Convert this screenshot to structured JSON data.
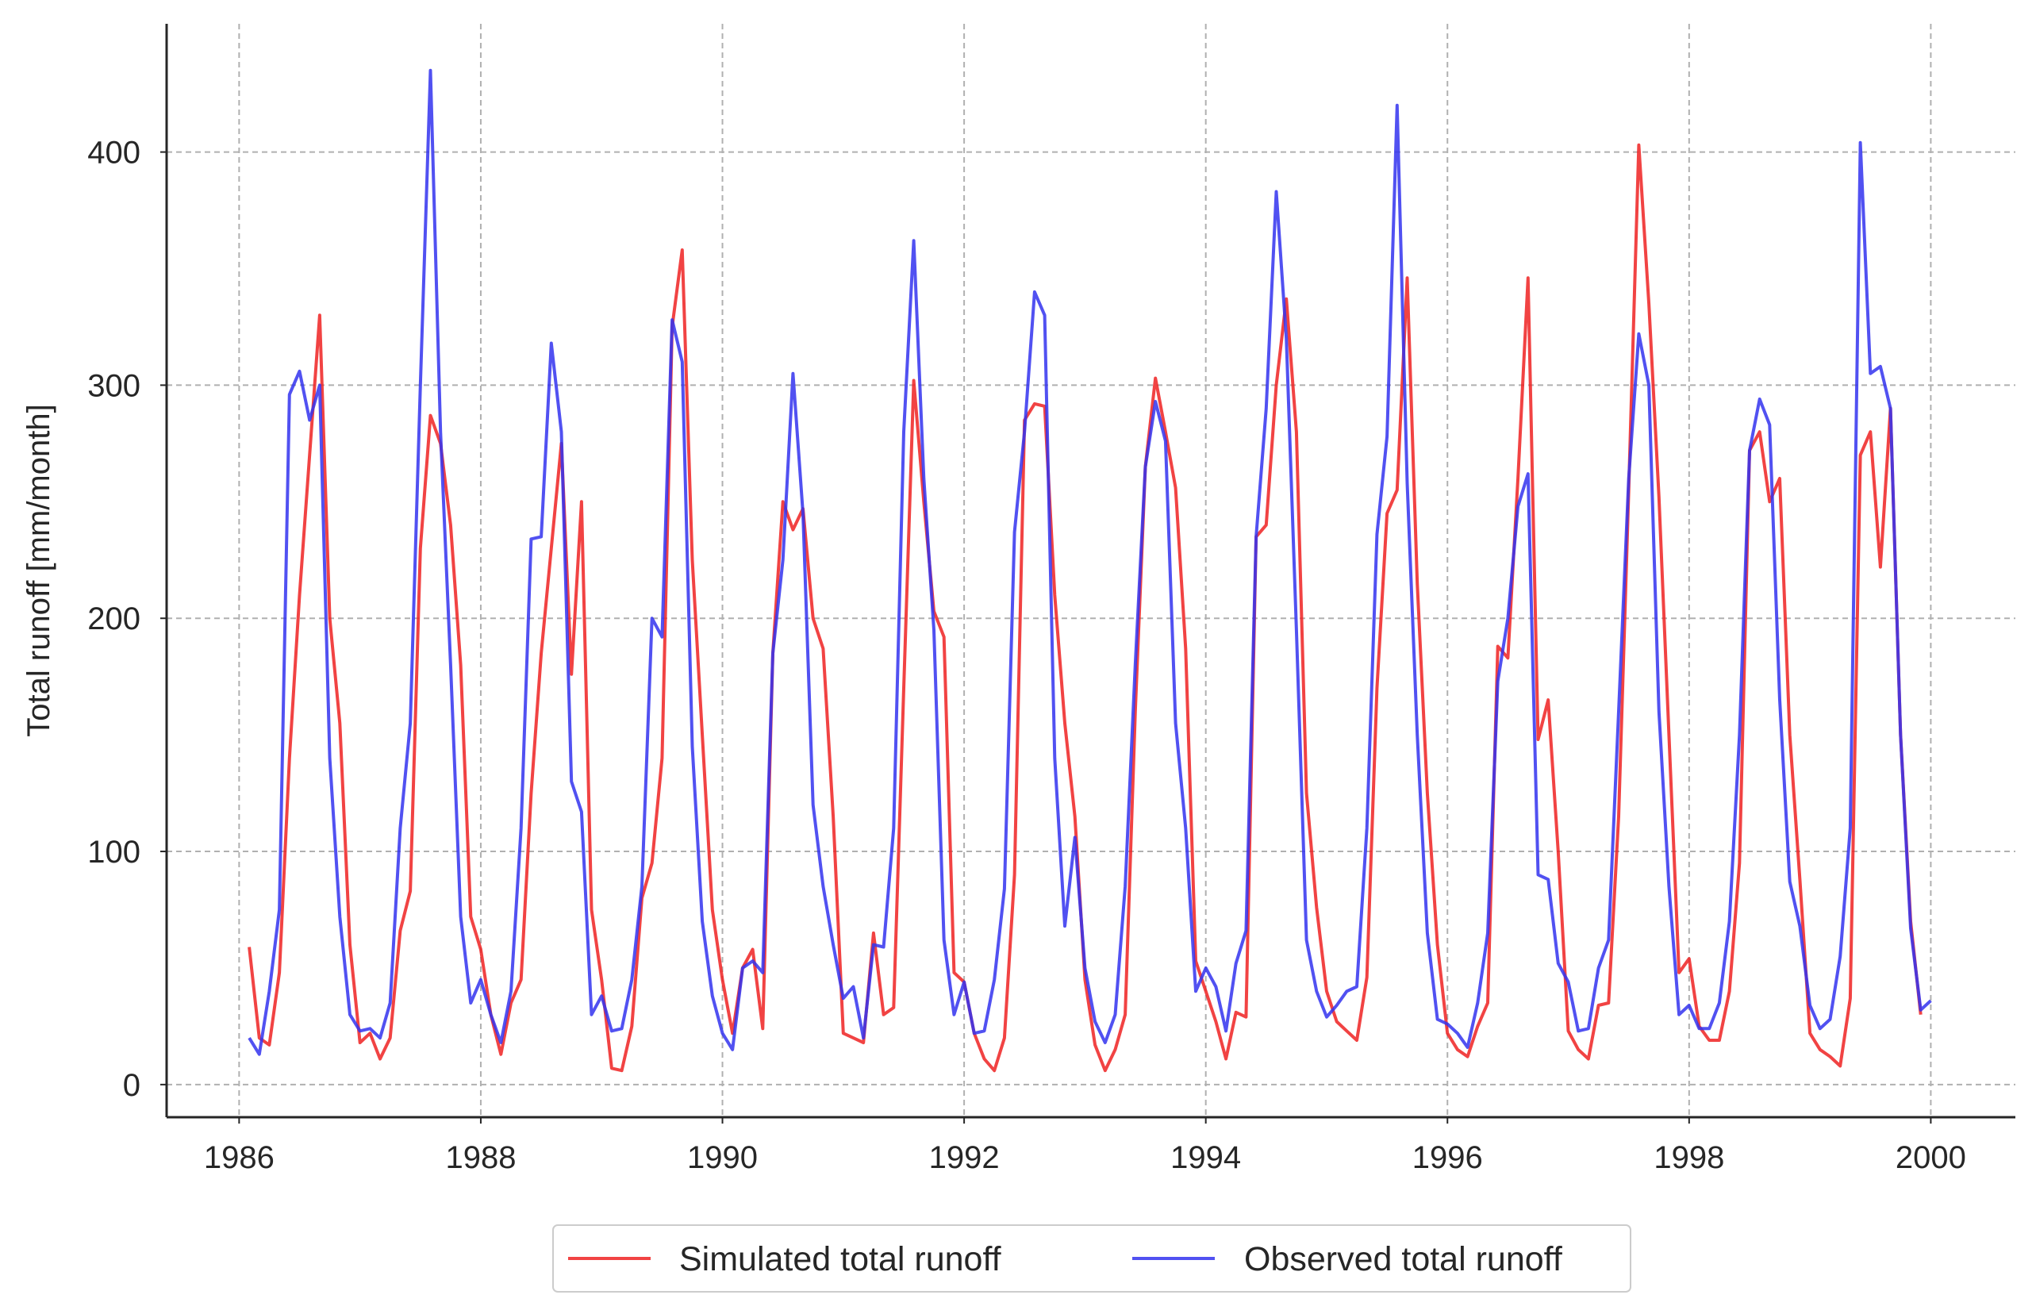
{
  "chart_data": {
    "type": "line",
    "title": "",
    "xlabel": "",
    "ylabel": "Total runoff [mm/month]",
    "xlim": [
      1985.4,
      2000.7
    ],
    "ylim": [
      -14,
      455
    ],
    "x_ticks": [
      1986,
      1988,
      1990,
      1992,
      1994,
      1996,
      1998,
      2000
    ],
    "x_tick_labels": [
      "1986",
      "1988",
      "1990",
      "1992",
      "1994",
      "1996",
      "1998",
      "2000"
    ],
    "y_ticks": [
      0,
      100,
      200,
      300,
      400
    ],
    "y_tick_labels": [
      "0",
      "100",
      "200",
      "300",
      "400"
    ],
    "grid": true,
    "legend_position": "bottom-center-outside",
    "x_start": "1986-02",
    "x_step": "monthly",
    "series": [
      {
        "name": "Simulated total runoff",
        "color": "#ee2222",
        "values": [
          59,
          20,
          17,
          48,
          140,
          210,
          270,
          330,
          200,
          155,
          60,
          18,
          22,
          11,
          20,
          66,
          83,
          230,
          287,
          275,
          240,
          180,
          72,
          58,
          30,
          13,
          35,
          45,
          125,
          185,
          230,
          275,
          176,
          250,
          75,
          45,
          7,
          6,
          25,
          80,
          95,
          140,
          325,
          358,
          225,
          150,
          75,
          45,
          22,
          50,
          58,
          24,
          185,
          250,
          238,
          247,
          200,
          187,
          115,
          22,
          20,
          18,
          65,
          30,
          33,
          170,
          302,
          250,
          203,
          192,
          48,
          44,
          22,
          11,
          6,
          20,
          90,
          285,
          292,
          291,
          210,
          155,
          115,
          45,
          17,
          6,
          15,
          30,
          160,
          265,
          303,
          280,
          256,
          187,
          53,
          40,
          27,
          11,
          31,
          29,
          235,
          240,
          300,
          337,
          280,
          125,
          76,
          40,
          27,
          23,
          19,
          46,
          170,
          245,
          255,
          346,
          215,
          125,
          60,
          22,
          15,
          12,
          25,
          35,
          188,
          183,
          260,
          346,
          148,
          165,
          100,
          23,
          15,
          11,
          34,
          35,
          115,
          255,
          403,
          335,
          252,
          150,
          48,
          54,
          25,
          19,
          19,
          40,
          95,
          272,
          280,
          250,
          260,
          150,
          88,
          22,
          15,
          12,
          8,
          37,
          270,
          280,
          222,
          290,
          150,
          70,
          30
        ]
      },
      {
        "name": "Observed total runoff",
        "color": "#3333ee",
        "values": [
          20,
          13,
          40,
          75,
          296,
          306,
          285,
          300,
          140,
          72,
          30,
          23,
          24,
          20,
          35,
          110,
          155,
          300,
          435,
          280,
          180,
          72,
          35,
          45,
          30,
          18,
          40,
          110,
          234,
          235,
          318,
          280,
          130,
          117,
          30,
          38,
          23,
          24,
          45,
          85,
          200,
          192,
          328,
          310,
          145,
          70,
          38,
          22,
          15,
          50,
          53,
          48,
          185,
          225,
          305,
          245,
          120,
          85,
          60,
          37,
          42,
          20,
          60,
          59,
          110,
          280,
          362,
          260,
          195,
          62,
          30,
          44,
          22,
          23,
          45,
          84,
          237,
          280,
          340,
          330,
          140,
          68,
          106,
          50,
          27,
          18,
          30,
          85,
          180,
          265,
          293,
          276,
          155,
          110,
          40,
          50,
          42,
          23,
          52,
          66,
          235,
          290,
          383,
          320,
          195,
          62,
          40,
          29,
          34,
          40,
          42,
          110,
          236,
          278,
          420,
          258,
          150,
          65,
          28,
          26,
          22,
          16,
          35,
          65,
          173,
          200,
          248,
          262,
          90,
          88,
          52,
          44,
          23,
          24,
          50,
          62,
          160,
          260,
          322,
          300,
          160,
          85,
          30,
          34,
          24,
          24,
          35,
          70,
          150,
          272,
          294,
          283,
          165,
          87,
          68,
          34,
          24,
          28,
          55,
          110,
          404,
          305,
          308,
          290,
          150,
          67,
          32,
          36
        ]
      }
    ]
  }
}
